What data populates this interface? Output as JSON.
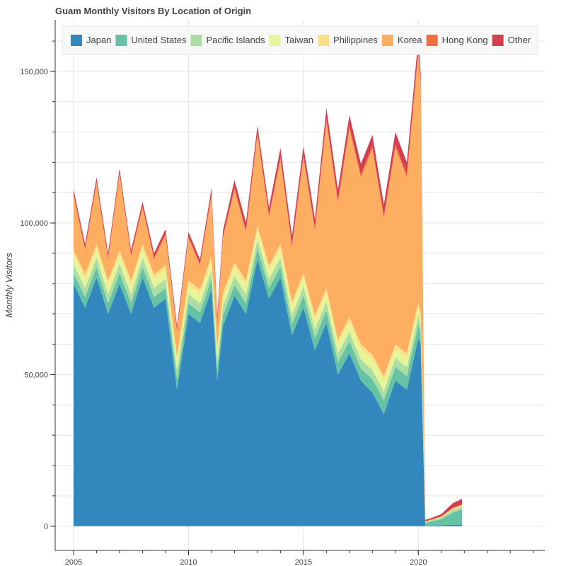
{
  "chart_data": {
    "type": "area",
    "stacked": true,
    "title": "Guam Monthly Visitors By Location of Origin",
    "xlabel": "",
    "ylabel": "Monthly Visitors",
    "x_range": [
      2004.2,
      2025.5
    ],
    "y_range": [
      -8000,
      167000
    ],
    "x_ticks": [
      2005,
      2010,
      2015,
      2020
    ],
    "y_ticks": [
      0,
      50000,
      100000,
      150000
    ],
    "y_tick_labels": [
      "0",
      "50,000",
      "100,000",
      "150,000"
    ],
    "grid": true,
    "legend_position": "top",
    "series": [
      {
        "name": "Japan",
        "color": "#3288bd",
        "x": [
          2005.0,
          2005.5,
          2006.0,
          2006.5,
          2007.0,
          2007.5,
          2008.0,
          2008.5,
          2009.0,
          2009.5,
          2010.0,
          2010.5,
          2011.0,
          2011.25,
          2011.5,
          2012.0,
          2012.5,
          2013.0,
          2013.5,
          2014.0,
          2014.5,
          2015.0,
          2015.5,
          2016.0,
          2016.5,
          2017.0,
          2017.5,
          2018.0,
          2018.5,
          2019.0,
          2019.5,
          2020.0,
          2020.1,
          2020.2,
          2020.3,
          2020.5,
          2021.0,
          2021.5,
          2021.9
        ],
        "values": [
          80000,
          72000,
          82000,
          70000,
          80000,
          70000,
          82000,
          72000,
          75000,
          45000,
          70000,
          67000,
          78000,
          48000,
          66000,
          76000,
          70000,
          88000,
          75000,
          82000,
          63000,
          72000,
          58000,
          67000,
          50000,
          57000,
          48000,
          44000,
          37000,
          48000,
          45000,
          62000,
          60000,
          30000,
          0,
          200,
          300,
          500,
          500
        ]
      },
      {
        "name": "United States",
        "color": "#66c2a5",
        "x": [
          2005.0,
          2005.5,
          2006.0,
          2006.5,
          2007.0,
          2007.5,
          2008.0,
          2008.5,
          2009.0,
          2009.5,
          2010.0,
          2010.5,
          2011.0,
          2011.25,
          2011.5,
          2012.0,
          2012.5,
          2013.0,
          2013.5,
          2014.0,
          2014.5,
          2015.0,
          2015.5,
          2016.0,
          2016.5,
          2017.0,
          2017.5,
          2018.0,
          2018.5,
          2019.0,
          2019.5,
          2020.0,
          2020.1,
          2020.2,
          2020.3,
          2020.5,
          2021.0,
          2021.5,
          2021.9
        ],
        "values": [
          3500,
          3500,
          3500,
          3500,
          3500,
          3500,
          3500,
          3500,
          3500,
          3500,
          3500,
          3500,
          3500,
          3500,
          3500,
          3500,
          3500,
          3500,
          3500,
          3500,
          3500,
          4000,
          4000,
          4000,
          4000,
          4000,
          4000,
          4500,
          4500,
          4500,
          4500,
          4500,
          4000,
          2500,
          1000,
          1200,
          2000,
          4000,
          5000
        ]
      },
      {
        "name": "Pacific Islands",
        "color": "#abdda4",
        "x": [
          2005.0,
          2005.5,
          2006.0,
          2006.5,
          2007.0,
          2007.5,
          2008.0,
          2008.5,
          2009.0,
          2009.5,
          2010.0,
          2010.5,
          2011.0,
          2011.25,
          2011.5,
          2012.0,
          2012.5,
          2013.0,
          2013.5,
          2014.0,
          2014.5,
          2015.0,
          2015.5,
          2016.0,
          2016.5,
          2017.0,
          2017.5,
          2018.0,
          2018.5,
          2019.0,
          2019.5,
          2020.0,
          2020.1,
          2020.2,
          2020.3,
          2020.5,
          2021.0,
          2021.5,
          2021.9
        ],
        "values": [
          3000,
          3000,
          3000,
          3000,
          3000,
          3000,
          3000,
          3000,
          3000,
          3000,
          3000,
          3000,
          3000,
          3000,
          3000,
          3000,
          3000,
          3000,
          3000,
          3000,
          3000,
          3000,
          3000,
          3000,
          3000,
          3000,
          3000,
          3000,
          3000,
          3000,
          3000,
          3000,
          2500,
          1500,
          400,
          400,
          500,
          800,
          800
        ]
      },
      {
        "name": "Taiwan",
        "color": "#e6f598",
        "x": [
          2005.0,
          2005.5,
          2006.0,
          2006.5,
          2007.0,
          2007.5,
          2008.0,
          2008.5,
          2009.0,
          2009.5,
          2010.0,
          2010.5,
          2011.0,
          2011.25,
          2011.5,
          2012.0,
          2012.5,
          2013.0,
          2013.5,
          2014.0,
          2014.5,
          2015.0,
          2015.5,
          2016.0,
          2016.5,
          2017.0,
          2017.5,
          2018.0,
          2018.5,
          2019.0,
          2019.5,
          2020.0,
          2020.1,
          2020.2,
          2020.3,
          2020.5,
          2021.0,
          2021.5,
          2021.9
        ],
        "values": [
          3000,
          3000,
          3000,
          3000,
          3000,
          3000,
          3000,
          3000,
          3000,
          3000,
          3000,
          3000,
          3000,
          3000,
          3000,
          3000,
          3000,
          3000,
          3000,
          3000,
          3000,
          3000,
          3000,
          3000,
          3000,
          3500,
          3500,
          3500,
          3500,
          3000,
          3000,
          3000,
          2500,
          1000,
          0,
          0,
          0,
          0,
          0
        ]
      },
      {
        "name": "Philippines",
        "color": "#fee08b",
        "x": [
          2005.0,
          2005.5,
          2006.0,
          2006.5,
          2007.0,
          2007.5,
          2008.0,
          2008.5,
          2009.0,
          2009.5,
          2010.0,
          2010.5,
          2011.0,
          2011.25,
          2011.5,
          2012.0,
          2012.5,
          2013.0,
          2013.5,
          2014.0,
          2014.5,
          2015.0,
          2015.5,
          2016.0,
          2016.5,
          2017.0,
          2017.5,
          2018.0,
          2018.5,
          2019.0,
          2019.5,
          2020.0,
          2020.1,
          2020.2,
          2020.3,
          2020.5,
          2021.0,
          2021.5,
          2021.9
        ],
        "values": [
          1500,
          1500,
          1500,
          1500,
          1500,
          1500,
          1500,
          1500,
          1500,
          1500,
          1500,
          1500,
          1500,
          1500,
          1500,
          1500,
          1500,
          1500,
          1500,
          1500,
          1500,
          1500,
          1500,
          1500,
          1500,
          1500,
          1500,
          1500,
          1500,
          1500,
          1500,
          1500,
          1200,
          600,
          200,
          200,
          300,
          500,
          500
        ]
      },
      {
        "name": "Korea",
        "color": "#fdae61",
        "x": [
          2005.0,
          2005.5,
          2006.0,
          2006.5,
          2007.0,
          2007.5,
          2008.0,
          2008.5,
          2009.0,
          2009.5,
          2010.0,
          2010.5,
          2011.0,
          2011.25,
          2011.5,
          2012.0,
          2012.5,
          2013.0,
          2013.5,
          2014.0,
          2014.5,
          2015.0,
          2015.5,
          2016.0,
          2016.5,
          2017.0,
          2017.5,
          2018.0,
          2018.5,
          2019.0,
          2019.5,
          2020.0,
          2020.1,
          2020.2,
          2020.3,
          2020.5,
          2021.0,
          2021.5,
          2021.9
        ],
        "values": [
          18000,
          8000,
          20000,
          7000,
          25000,
          8000,
          12000,
          5000,
          10000,
          8000,
          14000,
          8000,
          20000,
          8000,
          18000,
          24000,
          16000,
          30000,
          16000,
          28000,
          18000,
          38000,
          28000,
          55000,
          45000,
          62000,
          55000,
          68000,
          52000,
          65000,
          58000,
          82000,
          75000,
          40000,
          0,
          0,
          100,
          200,
          300
        ]
      },
      {
        "name": "Hong Kong",
        "color": "#f46d43",
        "x": [
          2005.0,
          2005.5,
          2006.0,
          2006.5,
          2007.0,
          2007.5,
          2008.0,
          2008.5,
          2009.0,
          2009.5,
          2010.0,
          2010.5,
          2011.0,
          2011.25,
          2011.5,
          2012.0,
          2012.5,
          2013.0,
          2013.5,
          2014.0,
          2014.5,
          2015.0,
          2015.5,
          2016.0,
          2016.5,
          2017.0,
          2017.5,
          2018.0,
          2018.5,
          2019.0,
          2019.5,
          2020.0,
          2020.1,
          2020.2,
          2020.3,
          2020.5,
          2021.0,
          2021.5,
          2021.9
        ],
        "values": [
          500,
          500,
          500,
          500,
          500,
          500,
          500,
          500,
          500,
          500,
          500,
          500,
          500,
          500,
          500,
          600,
          600,
          600,
          600,
          700,
          700,
          800,
          800,
          900,
          900,
          1000,
          1000,
          1000,
          1000,
          1000,
          1000,
          1000,
          800,
          400,
          0,
          0,
          0,
          100,
          100
        ]
      },
      {
        "name": "Other",
        "color": "#d53e4f",
        "x": [
          2005.0,
          2005.5,
          2006.0,
          2006.5,
          2007.0,
          2007.5,
          2008.0,
          2008.5,
          2009.0,
          2009.5,
          2010.0,
          2010.5,
          2011.0,
          2011.25,
          2011.5,
          2012.0,
          2012.5,
          2013.0,
          2013.5,
          2014.0,
          2014.5,
          2015.0,
          2015.5,
          2016.0,
          2016.5,
          2017.0,
          2017.5,
          2018.0,
          2018.5,
          2019.0,
          2019.5,
          2020.0,
          2020.1,
          2020.2,
          2020.3,
          2020.5,
          2021.0,
          2021.5,
          2021.9
        ],
        "values": [
          1500,
          1500,
          1500,
          1500,
          1500,
          1500,
          1500,
          1500,
          1500,
          1500,
          1500,
          1500,
          2000,
          2000,
          2000,
          2500,
          2500,
          2500,
          2500,
          3000,
          3000,
          3000,
          3000,
          3500,
          3500,
          3500,
          3500,
          3500,
          3500,
          4000,
          4000,
          4000,
          3500,
          2000,
          500,
          500,
          800,
          1500,
          1800
        ]
      }
    ]
  }
}
